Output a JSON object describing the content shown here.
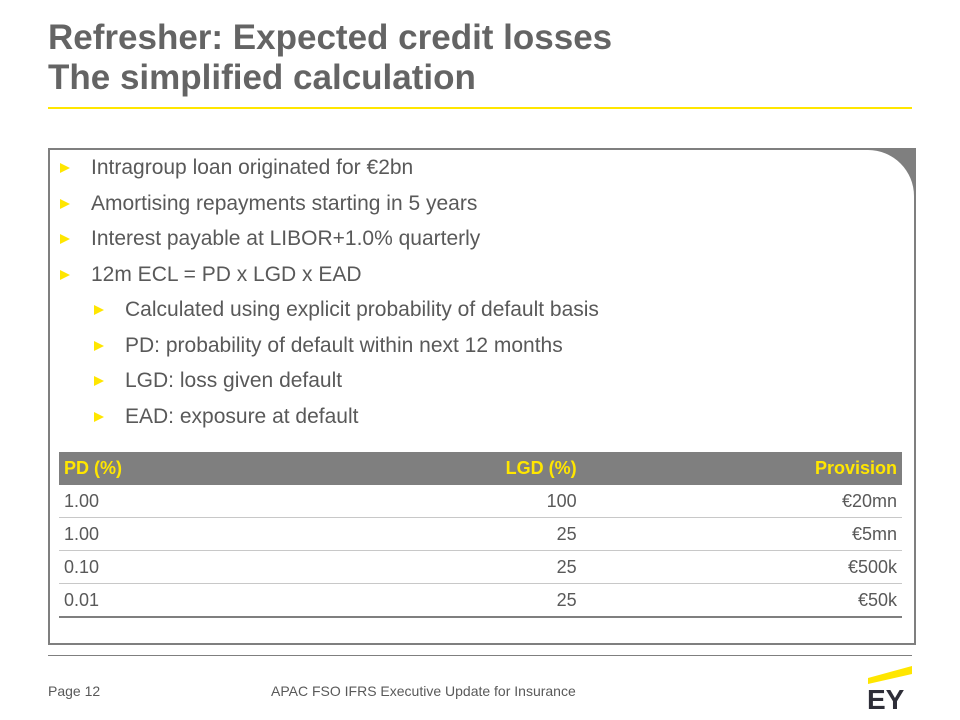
{
  "slide": {
    "title_line1": "Refresher: Expected credit losses",
    "title_line2": "The simplified calculation"
  },
  "bullets": [
    {
      "text": "Intragroup loan originated for €2bn",
      "level": 1
    },
    {
      "text": "Amortising repayments starting in 5 years",
      "level": 1
    },
    {
      "text": "Interest payable at LIBOR+1.0% quarterly",
      "level": 1
    },
    {
      "text": "12m ECL = PD x LGD x EAD",
      "level": 1
    },
    {
      "text": "Calculated using explicit probability of default basis",
      "level": 2
    },
    {
      "text": "PD: probability of default within next 12 months",
      "level": 2
    },
    {
      "text": "LGD: loss given default",
      "level": 2
    },
    {
      "text": "EAD: exposure at default",
      "level": 2
    }
  ],
  "table": {
    "headers": [
      "PD (%)",
      "LGD (%)",
      "Provision"
    ],
    "rows": [
      [
        "1.00",
        "100",
        "€20mn"
      ],
      [
        "1.00",
        "25",
        "€5mn"
      ],
      [
        "0.10",
        "25",
        "€500k"
      ],
      [
        "0.01",
        "25",
        "€50k"
      ]
    ]
  },
  "footer": {
    "page": "Page 12",
    "title": "APAC FSO IFRS Executive Update for Insurance",
    "logo_text": "EY"
  },
  "colors": {
    "accent": "#ffe600",
    "dark_grey": "#7f7f7f",
    "text": "#595959",
    "title": "#646464"
  }
}
